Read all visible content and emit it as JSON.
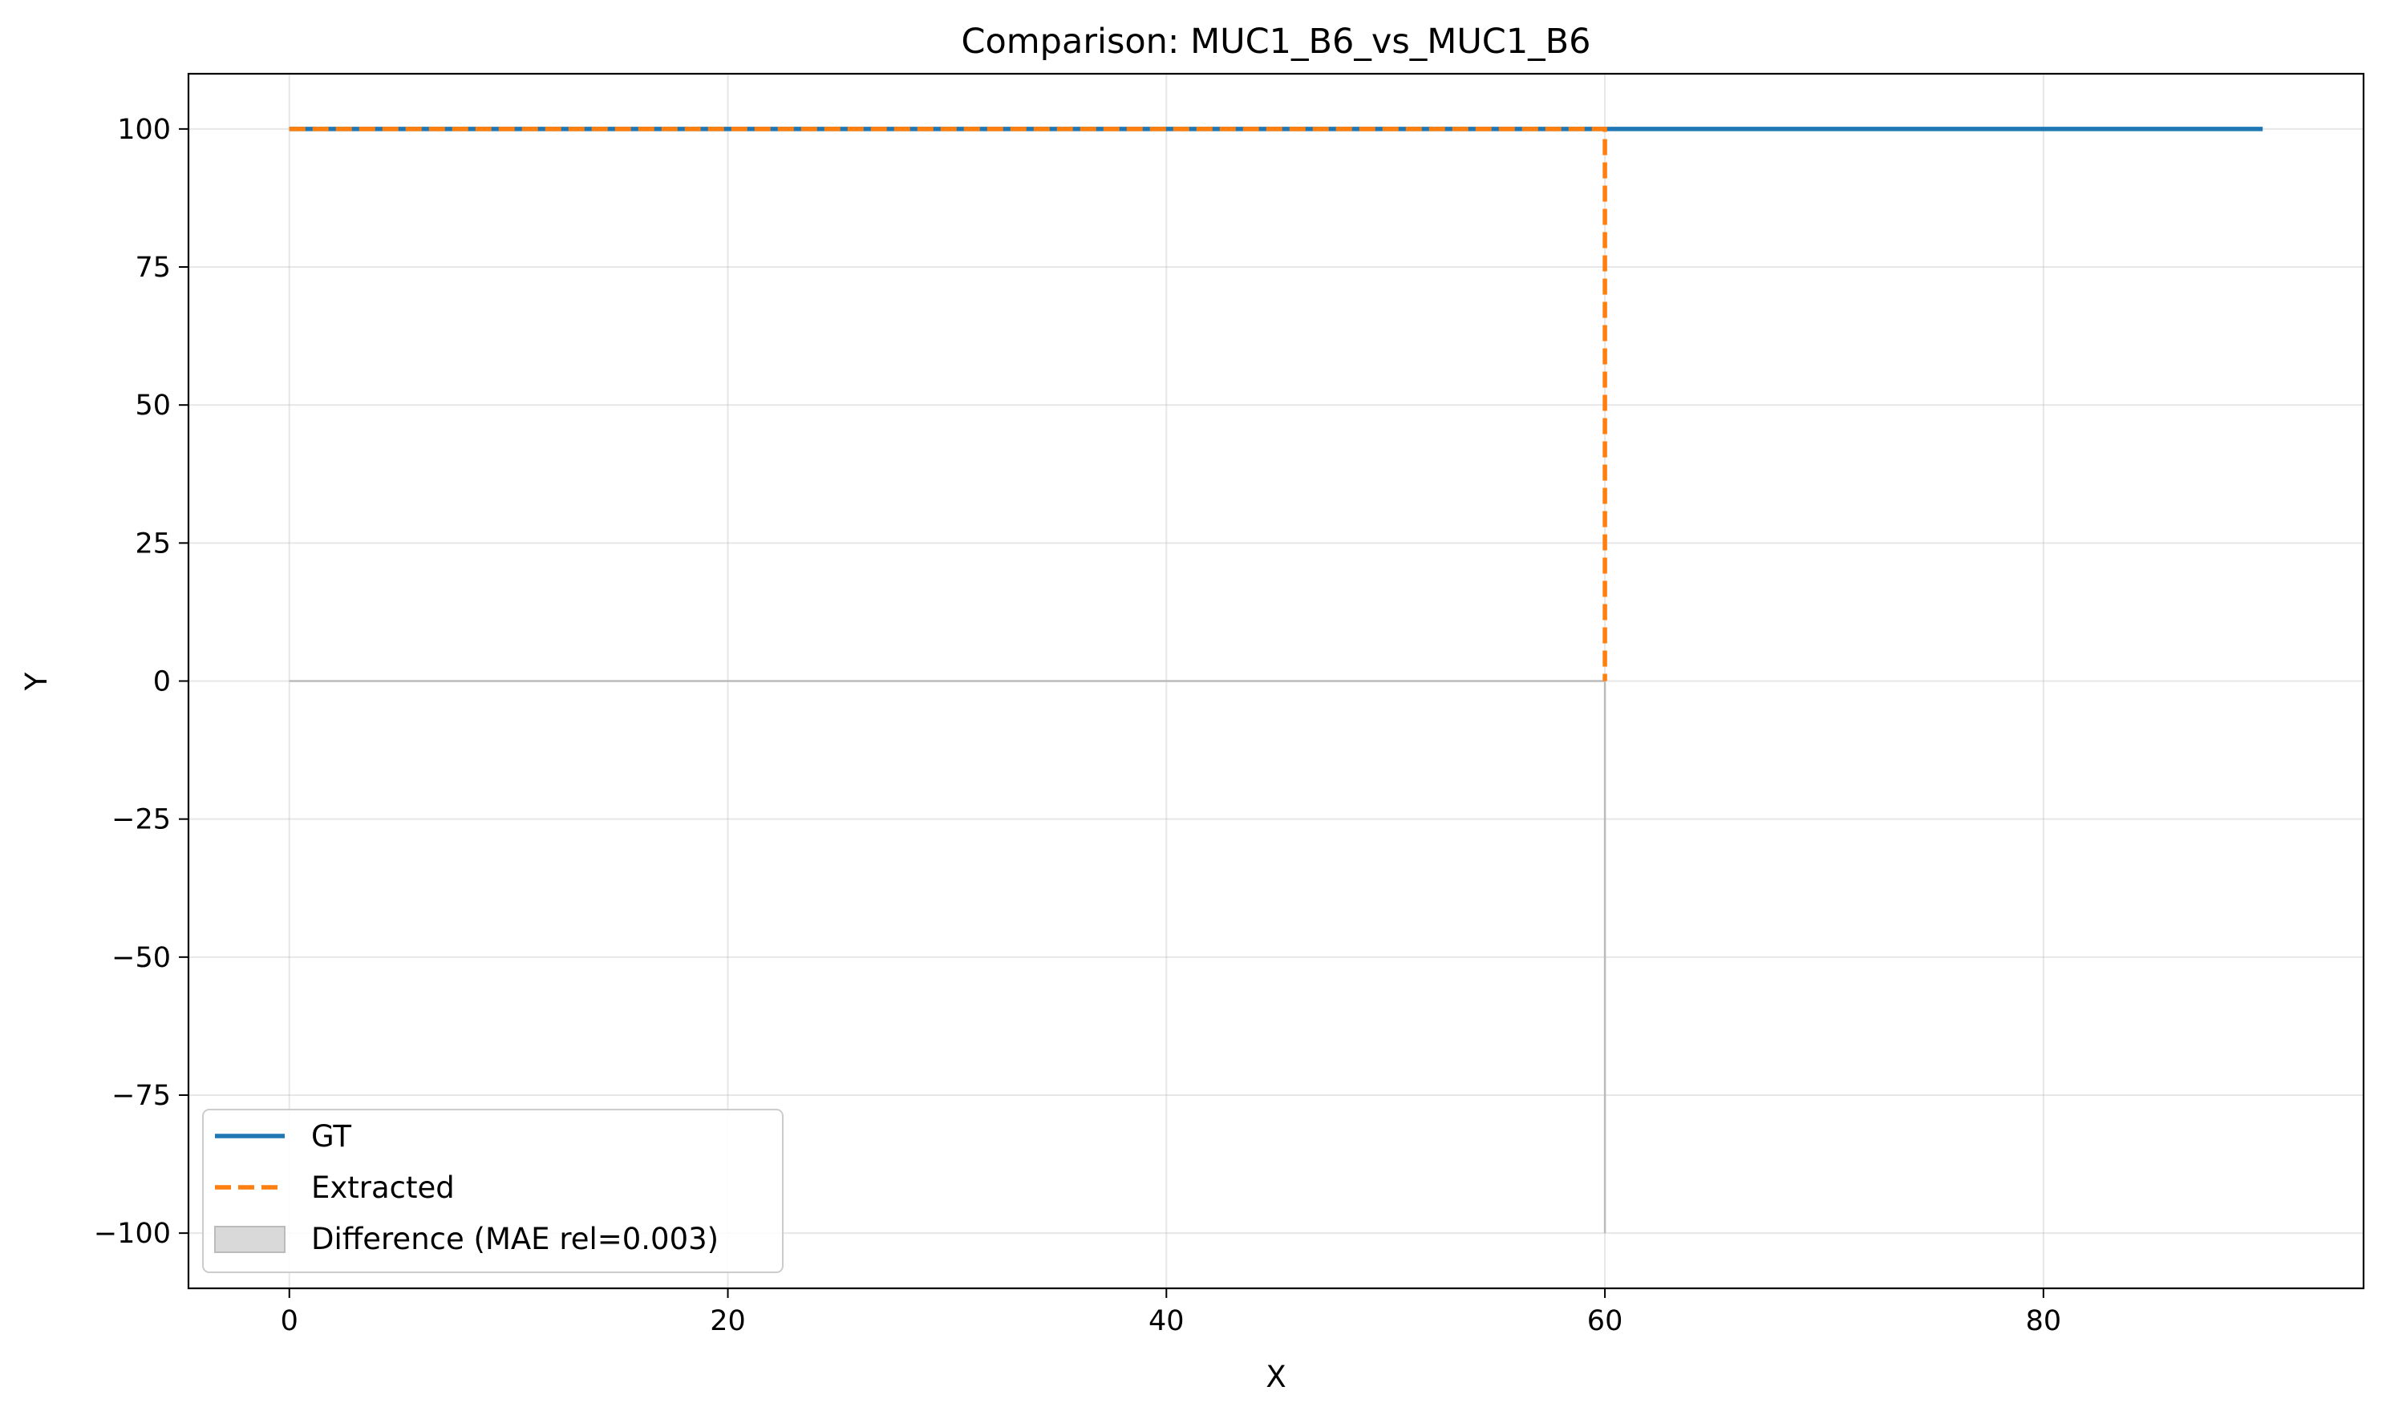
{
  "chart_data": {
    "type": "line",
    "title": "Comparison: MUC1_B6_vs_MUC1_B6",
    "xlabel": "X",
    "ylabel": "Y",
    "xlim": [
      -4.6,
      94.6
    ],
    "ylim": [
      -110,
      110
    ],
    "xticks": [
      0,
      20,
      40,
      60,
      80
    ],
    "xtick_labels": [
      "0",
      "20",
      "40",
      "60",
      "80"
    ],
    "yticks": [
      100,
      75,
      50,
      25,
      0,
      -25,
      -50,
      -75,
      -100
    ],
    "ytick_labels": [
      "100",
      "75",
      "50",
      "25",
      "0",
      "−25",
      "−50",
      "−75",
      "−100"
    ],
    "grid": true,
    "legend_position": "lower-left",
    "series": [
      {
        "name": "GT",
        "style": "solid",
        "color": "#1f77b4",
        "x": [
          0,
          90
        ],
        "y": [
          100,
          100
        ]
      },
      {
        "name": "Extracted",
        "style": "dashed",
        "color": "#ff7f0e",
        "x": [
          0,
          60,
          60
        ],
        "y": [
          100,
          100,
          0
        ]
      }
    ],
    "difference": {
      "name": "Difference (MAE rel=0.003)",
      "color": "#bbbbbb",
      "x": [
        0,
        60,
        60
      ],
      "y": [
        0,
        0,
        -100
      ]
    },
    "legend": [
      "GT",
      "Extracted",
      "Difference (MAE rel=0.003)"
    ]
  }
}
